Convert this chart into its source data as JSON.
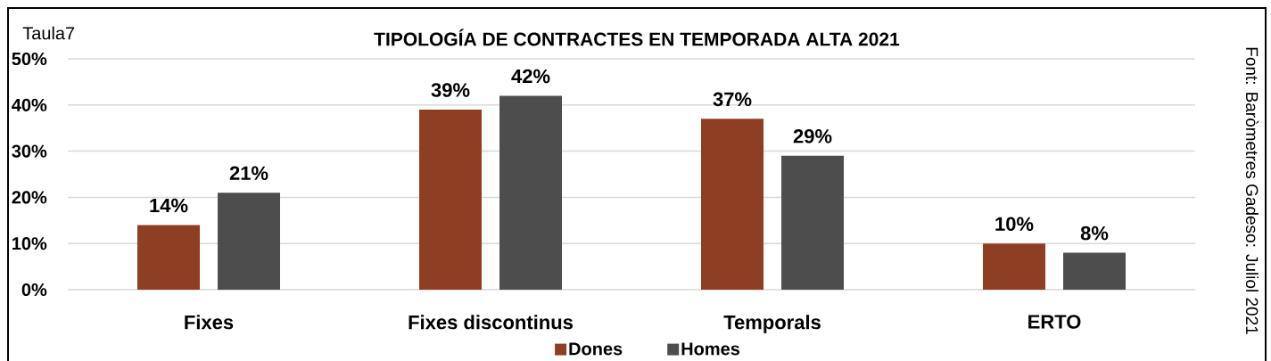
{
  "chart_data": {
    "type": "bar",
    "title": "TIPOLOGÍA DE CONTRACTES EN TEMPORADA ALTA 2021",
    "categories": [
      "Fixes",
      "Fixes discontinus",
      "Temporals",
      "ERTO"
    ],
    "series": [
      {
        "name": "Dones",
        "color": "#8e3e22",
        "values": [
          14,
          39,
          37,
          10
        ],
        "value_labels": [
          "14%",
          "39%",
          "37%",
          "10%"
        ]
      },
      {
        "name": "Homes",
        "color": "#4d4d4d",
        "values": [
          21,
          42,
          29,
          8
        ],
        "value_labels": [
          "21%",
          "42%",
          "29%",
          "8%"
        ]
      }
    ],
    "ylim": [
      0,
      50
    ],
    "yticks": [
      {
        "value": 0,
        "label": "0%"
      },
      {
        "value": 10,
        "label": "10%"
      },
      {
        "value": 20,
        "label": "20%"
      },
      {
        "value": 30,
        "label": "30%"
      },
      {
        "value": 40,
        "label": "40%"
      },
      {
        "value": 50,
        "label": "50%"
      }
    ],
    "grid": "y",
    "legend": "bottom",
    "annotations": [
      "Taula7",
      "Font: Baròmetres Gadeso: Juliol 2021"
    ]
  }
}
